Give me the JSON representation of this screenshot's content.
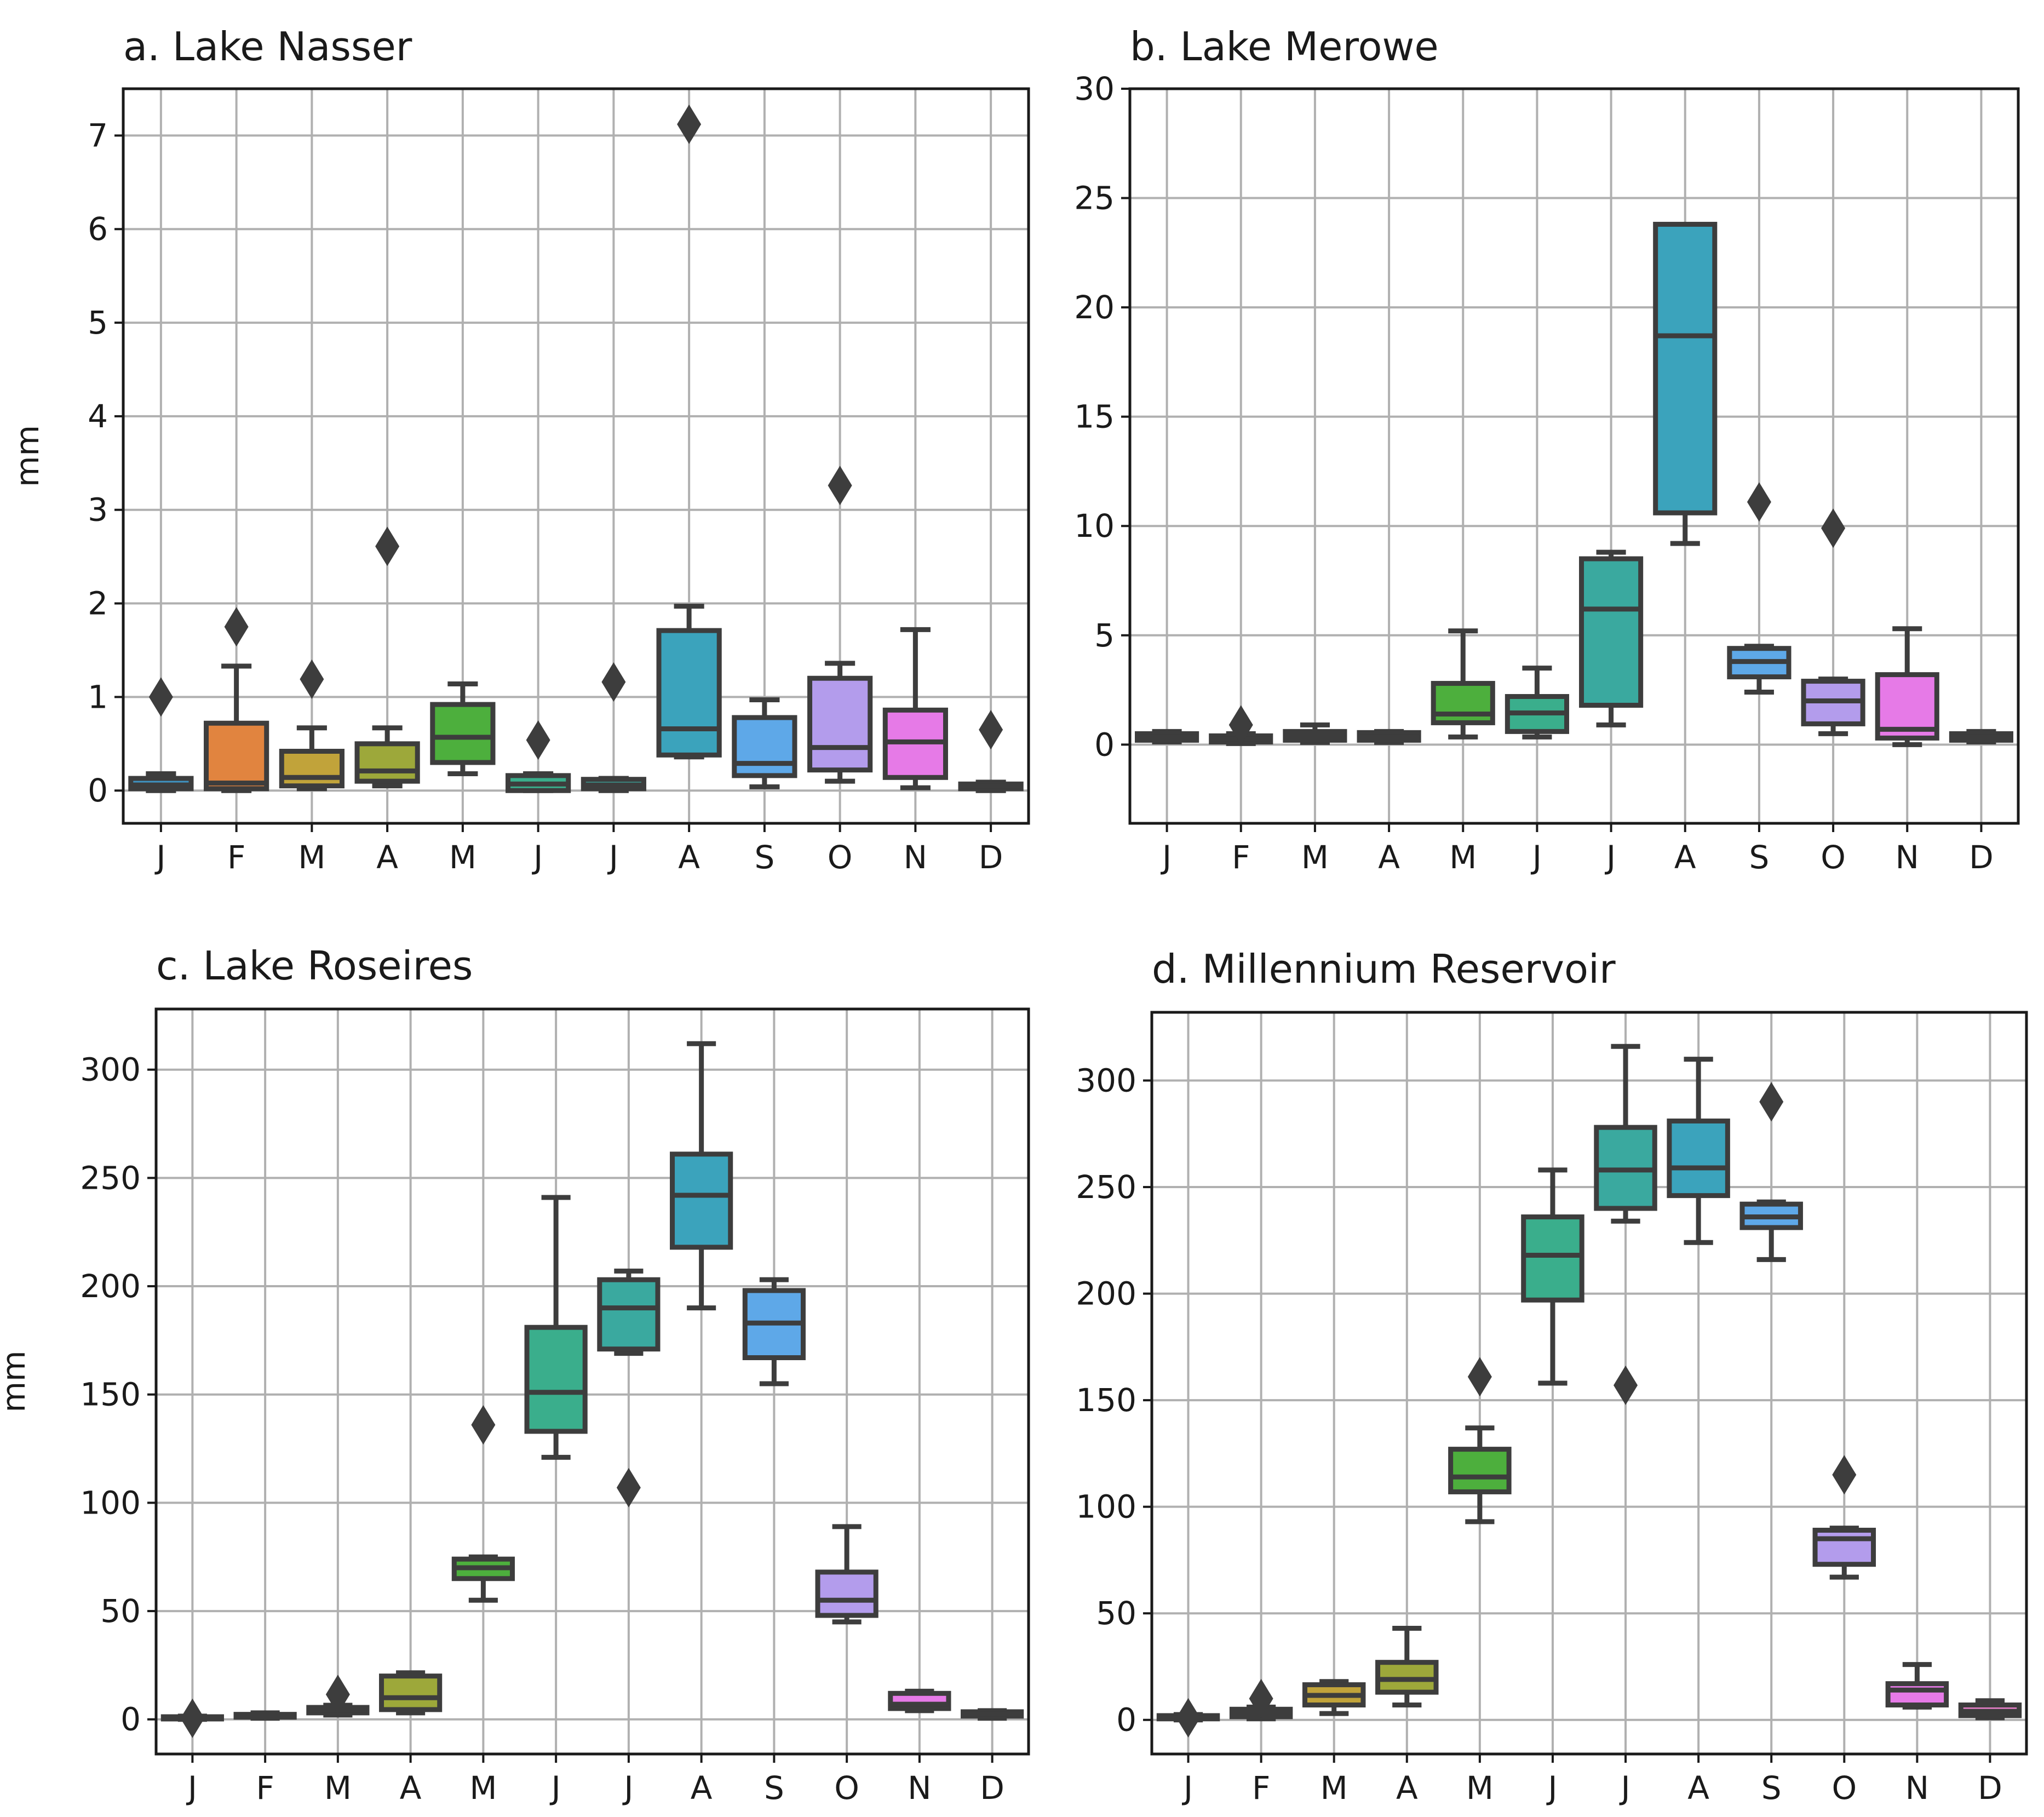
{
  "figure": {
    "ylabel_shared": "mm"
  },
  "colors": {
    "box_edge": "#3d3d3d",
    "grid": "#b0b0b0",
    "months": [
      "#3f93c2",
      "#e1843f",
      "#c1a33a",
      "#9da83a",
      "#4daf3d",
      "#3aae8c",
      "#3aa99f",
      "#3ba3bc",
      "#5ea8e8",
      "#b39cec",
      "#e67ae7",
      "#e57fc8"
    ]
  },
  "chart_data": [
    {
      "type": "boxplot",
      "title": "a. Lake Nasser",
      "ylabel": "mm",
      "categories": [
        "J",
        "F",
        "M",
        "A",
        "M",
        "J",
        "J",
        "A",
        "S",
        "O",
        "N",
        "D"
      ],
      "ylim": [
        -0.35,
        7.5
      ],
      "yticks": [
        0,
        1,
        2,
        3,
        4,
        5,
        6,
        7
      ],
      "boxes": [
        {
          "whislo": 0.0,
          "q1": 0.02,
          "med": 0.06,
          "q3": 0.13,
          "whishi": 0.18,
          "fliers": [
            1.0
          ]
        },
        {
          "whislo": 0.0,
          "q1": 0.02,
          "med": 0.08,
          "q3": 0.72,
          "whishi": 1.33,
          "fliers": [
            1.75
          ]
        },
        {
          "whislo": 0.02,
          "q1": 0.05,
          "med": 0.14,
          "q3": 0.42,
          "whishi": 0.67,
          "fliers": [
            1.19
          ]
        },
        {
          "whislo": 0.05,
          "q1": 0.1,
          "med": 0.21,
          "q3": 0.5,
          "whishi": 0.67,
          "fliers": [
            2.61
          ]
        },
        {
          "whislo": 0.18,
          "q1": 0.3,
          "med": 0.57,
          "q3": 0.92,
          "whishi": 1.14,
          "fliers": []
        },
        {
          "whislo": 0.0,
          "q1": 0.0,
          "med": 0.07,
          "q3": 0.16,
          "whishi": 0.18,
          "fliers": [
            0.54
          ]
        },
        {
          "whislo": 0.0,
          "q1": 0.02,
          "med": 0.06,
          "q3": 0.12,
          "whishi": 0.13,
          "fliers": [
            1.16
          ]
        },
        {
          "whislo": 0.36,
          "q1": 0.38,
          "med": 0.66,
          "q3": 1.71,
          "whishi": 1.97,
          "fliers": [
            7.12
          ]
        },
        {
          "whislo": 0.04,
          "q1": 0.16,
          "med": 0.29,
          "q3": 0.78,
          "whishi": 0.97,
          "fliers": []
        },
        {
          "whislo": 0.1,
          "q1": 0.22,
          "med": 0.46,
          "q3": 1.2,
          "whishi": 1.36,
          "fliers": [
            3.26
          ]
        },
        {
          "whislo": 0.03,
          "q1": 0.14,
          "med": 0.52,
          "q3": 0.86,
          "whishi": 1.72,
          "fliers": []
        },
        {
          "whislo": 0.0,
          "q1": 0.02,
          "med": 0.05,
          "q3": 0.07,
          "whishi": 0.09,
          "fliers": [
            0.65
          ]
        }
      ]
    },
    {
      "type": "boxplot",
      "title": "b. Lake Merowe",
      "ylabel": "",
      "categories": [
        "J",
        "F",
        "M",
        "A",
        "M",
        "J",
        "J",
        "A",
        "S",
        "O",
        "N",
        "D"
      ],
      "ylim": [
        -3.6,
        30
      ],
      "yticks": [
        0,
        5,
        10,
        15,
        20,
        25,
        30
      ],
      "boxes": [
        {
          "whislo": 0.12,
          "q1": 0.2,
          "med": 0.35,
          "q3": 0.5,
          "whishi": 0.6,
          "fliers": []
        },
        {
          "whislo": 0.05,
          "q1": 0.12,
          "med": 0.25,
          "q3": 0.4,
          "whishi": 0.5,
          "fliers": [
            0.9
          ]
        },
        {
          "whislo": 0.1,
          "q1": 0.2,
          "med": 0.4,
          "q3": 0.6,
          "whishi": 0.9,
          "fliers": []
        },
        {
          "whislo": 0.1,
          "q1": 0.2,
          "med": 0.35,
          "q3": 0.55,
          "whishi": 0.6,
          "fliers": []
        },
        {
          "whislo": 0.35,
          "q1": 1.0,
          "med": 1.4,
          "q3": 2.8,
          "whishi": 5.2,
          "fliers": []
        },
        {
          "whislo": 0.35,
          "q1": 0.6,
          "med": 1.45,
          "q3": 2.2,
          "whishi": 3.5,
          "fliers": []
        },
        {
          "whislo": 0.9,
          "q1": 1.8,
          "med": 6.2,
          "q3": 8.5,
          "whishi": 8.8,
          "fliers": []
        },
        {
          "whislo": 9.2,
          "q1": 10.6,
          "med": 18.7,
          "q3": 23.8,
          "whishi": 23.8,
          "fliers": []
        },
        {
          "whislo": 2.4,
          "q1": 3.1,
          "med": 3.8,
          "q3": 4.4,
          "whishi": 4.5,
          "fliers": [
            11.1
          ]
        },
        {
          "whislo": 0.5,
          "q1": 0.95,
          "med": 2.0,
          "q3": 2.9,
          "whishi": 3.0,
          "fliers": [
            9.9
          ]
        },
        {
          "whislo": 0.0,
          "q1": 0.3,
          "med": 0.7,
          "q3": 3.2,
          "whishi": 5.3,
          "fliers": []
        },
        {
          "whislo": 0.12,
          "q1": 0.2,
          "med": 0.35,
          "q3": 0.5,
          "whishi": 0.6,
          "fliers": []
        }
      ]
    },
    {
      "type": "boxplot",
      "title": "c. Lake Roseires",
      "ylabel": "mm",
      "categories": [
        "J",
        "F",
        "M",
        "A",
        "M",
        "J",
        "J",
        "A",
        "S",
        "O",
        "N",
        "D"
      ],
      "ylim": [
        -16,
        328
      ],
      "yticks": [
        0,
        50,
        100,
        150,
        200,
        250,
        300
      ],
      "boxes": [
        {
          "whislo": 0.0,
          "q1": 0.3,
          "med": 0.8,
          "q3": 1.2,
          "whishi": 1.5,
          "fliers": [
            0.5
          ]
        },
        {
          "whislo": 0.5,
          "q1": 1.0,
          "med": 1.7,
          "q3": 2.3,
          "whishi": 3.0,
          "fliers": []
        },
        {
          "whislo": 2.0,
          "q1": 3.0,
          "med": 4.2,
          "q3": 5.5,
          "whishi": 6.5,
          "fliers": [
            11.5
          ]
        },
        {
          "whislo": 3.0,
          "q1": 4.5,
          "med": 10.0,
          "q3": 20.0,
          "whishi": 21.5,
          "fliers": []
        },
        {
          "whislo": 55.0,
          "q1": 65.0,
          "med": 70.0,
          "q3": 74.0,
          "whishi": 75.0,
          "fliers": [
            136.0
          ]
        },
        {
          "whislo": 121.0,
          "q1": 133.0,
          "med": 151.0,
          "q3": 181.0,
          "whishi": 241.0,
          "fliers": []
        },
        {
          "whislo": 169.0,
          "q1": 171.0,
          "med": 190.0,
          "q3": 203.0,
          "whishi": 207.0,
          "fliers": [
            107.0
          ]
        },
        {
          "whislo": 190.0,
          "q1": 218.0,
          "med": 242.0,
          "q3": 261.0,
          "whishi": 312.0,
          "fliers": []
        },
        {
          "whislo": 155.0,
          "q1": 167.0,
          "med": 183.0,
          "q3": 198.0,
          "whishi": 203.0,
          "fliers": []
        },
        {
          "whislo": 45.0,
          "q1": 48.0,
          "med": 55.0,
          "q3": 68.0,
          "whishi": 89.0,
          "fliers": []
        },
        {
          "whislo": 4.0,
          "q1": 5.0,
          "med": 7.0,
          "q3": 12.0,
          "whishi": 13.0,
          "fliers": []
        },
        {
          "whislo": 0.5,
          "q1": 1.5,
          "med": 2.5,
          "q3": 3.5,
          "whishi": 4.0,
          "fliers": []
        }
      ]
    },
    {
      "type": "boxplot",
      "title": "d. Millennium Reservoir",
      "ylabel": "",
      "categories": [
        "J",
        "F",
        "M",
        "A",
        "M",
        "J",
        "J",
        "A",
        "S",
        "O",
        "N",
        "D"
      ],
      "ylim": [
        -16,
        332
      ],
      "yticks": [
        0,
        50,
        100,
        150,
        200,
        250,
        300
      ],
      "boxes": [
        {
          "whislo": 0.0,
          "q1": 0.5,
          "med": 1.0,
          "q3": 2.0,
          "whishi": 2.5,
          "fliers": [
            1.0
          ]
        },
        {
          "whislo": 0.5,
          "q1": 1.5,
          "med": 3.0,
          "q3": 5.0,
          "whishi": 6.0,
          "fliers": [
            10.0
          ]
        },
        {
          "whislo": 3.0,
          "q1": 7.0,
          "med": 11.5,
          "q3": 16.5,
          "whishi": 18.0,
          "fliers": []
        },
        {
          "whislo": 7.0,
          "q1": 13.0,
          "med": 19.0,
          "q3": 27.0,
          "whishi": 43.0,
          "fliers": []
        },
        {
          "whislo": 93.0,
          "q1": 107.0,
          "med": 114.0,
          "q3": 127.0,
          "whishi": 137.0,
          "fliers": [
            161.0
          ]
        },
        {
          "whislo": 158.0,
          "q1": 197.0,
          "med": 218.0,
          "q3": 236.0,
          "whishi": 258.0,
          "fliers": []
        },
        {
          "whislo": 234.0,
          "q1": 240.0,
          "med": 258.0,
          "q3": 278.0,
          "whishi": 316.0,
          "fliers": [
            157.0
          ]
        },
        {
          "whislo": 224.0,
          "q1": 246.0,
          "med": 259.0,
          "q3": 281.0,
          "whishi": 310.0,
          "fliers": []
        },
        {
          "whislo": 216.0,
          "q1": 231.0,
          "med": 236.0,
          "q3": 242.0,
          "whishi": 243.0,
          "fliers": [
            290.0
          ]
        },
        {
          "whislo": 67.0,
          "q1": 73.0,
          "med": 85.0,
          "q3": 89.0,
          "whishi": 90.0,
          "fliers": [
            115.0
          ]
        },
        {
          "whislo": 6.0,
          "q1": 7.0,
          "med": 14.0,
          "q3": 17.0,
          "whishi": 26.0,
          "fliers": []
        },
        {
          "whislo": 1.0,
          "q1": 2.0,
          "med": 4.0,
          "q3": 7.0,
          "whishi": 9.0,
          "fliers": []
        }
      ]
    }
  ]
}
